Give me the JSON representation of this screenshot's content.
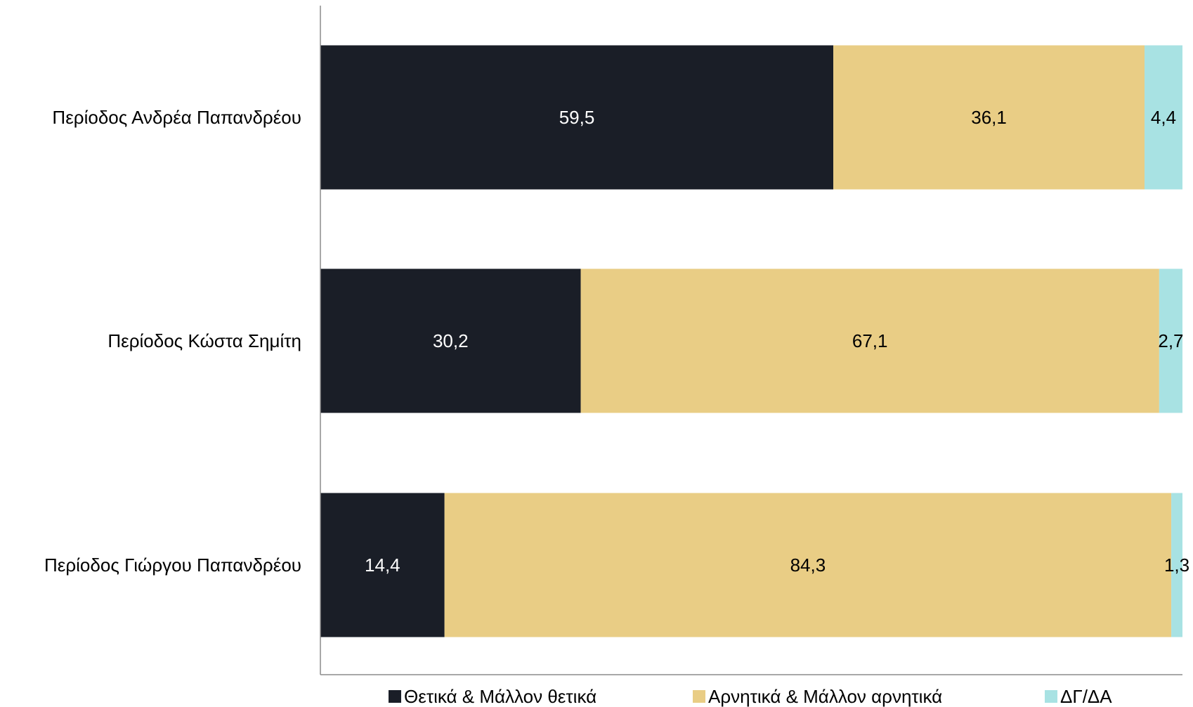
{
  "chart_data": {
    "type": "bar",
    "orientation": "horizontal",
    "stacked": true,
    "categories": [
      "Περίοδος Ανδρέα Παπανδρέου",
      "Περίοδος Κώστα Σημίτη",
      "Περίοδος Γιώργου Παπανδρέου"
    ],
    "series": [
      {
        "name": "Θετικά & Μάλλον θετικά",
        "color": "#1a1e27",
        "label_color": "#ffffff",
        "values": [
          59.5,
          30.2,
          14.4
        ],
        "labels": [
          "59,5",
          "30,2",
          "14,4"
        ]
      },
      {
        "name": "Αρνητικά & Μάλλον αρνητικά",
        "color": "#e9cd85",
        "label_color": "#000000",
        "values": [
          36.1,
          67.1,
          84.3
        ],
        "labels": [
          "36,1",
          "67,1",
          "84,3"
        ]
      },
      {
        "name": "ΔΓ/ΔΑ",
        "color": "#a8e2e3",
        "label_color": "#000000",
        "values": [
          4.4,
          2.7,
          1.3
        ],
        "labels": [
          "4,4",
          "2,7",
          "1,3"
        ]
      }
    ],
    "xlim": [
      0,
      100
    ],
    "grid": false,
    "legend_position": "bottom"
  }
}
